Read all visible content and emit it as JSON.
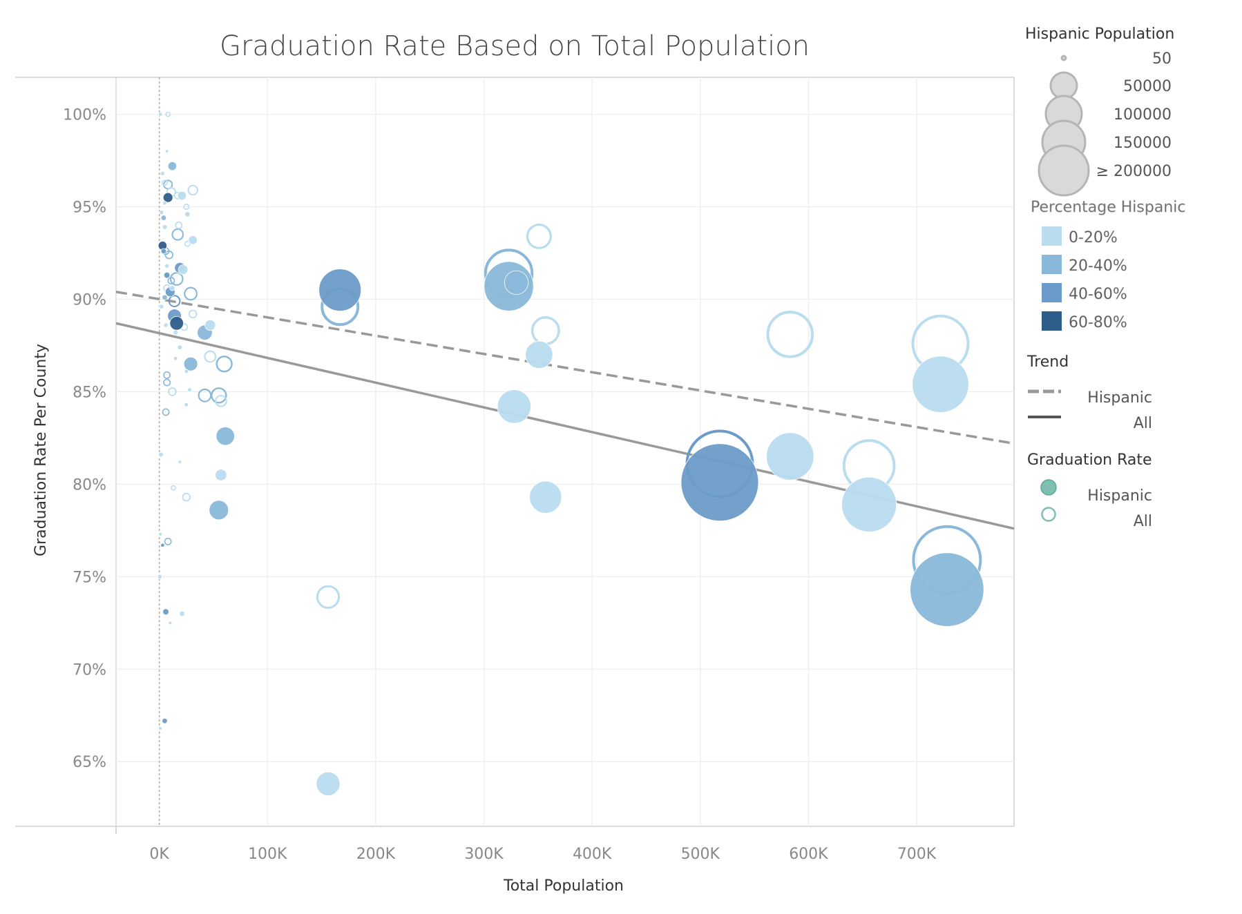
{
  "chart_data": {
    "type": "scatter",
    "title": "Graduation Rate Based on Total Population",
    "xlabel": "Total Population",
    "ylabel": "Graduation Rate Per County",
    "xlim": [
      -40000,
      790000
    ],
    "ylim": [
      61.5,
      102
    ],
    "x_ticks": [
      {
        "value": 0,
        "label": "0K"
      },
      {
        "value": 100000,
        "label": "100K"
      },
      {
        "value": 200000,
        "label": "200K"
      },
      {
        "value": 300000,
        "label": "300K"
      },
      {
        "value": 400000,
        "label": "400K"
      },
      {
        "value": 500000,
        "label": "500K"
      },
      {
        "value": 600000,
        "label": "600K"
      },
      {
        "value": 700000,
        "label": "700K"
      }
    ],
    "y_ticks": [
      {
        "value": 65,
        "label": "65%"
      },
      {
        "value": 70,
        "label": "70%"
      },
      {
        "value": 75,
        "label": "75%"
      },
      {
        "value": 80,
        "label": "80%"
      },
      {
        "value": 85,
        "label": "85%"
      },
      {
        "value": 90,
        "label": "90%"
      },
      {
        "value": 95,
        "label": "95%"
      },
      {
        "value": 100,
        "label": "100%"
      }
    ],
    "grid": true,
    "reference_line_x": 0,
    "legend_position": "right",
    "size_legend": {
      "title": "Hispanic Population",
      "entries": [
        {
          "value": 50,
          "label": "50"
        },
        {
          "value": 50000,
          "label": "50000"
        },
        {
          "value": 100000,
          "label": "100000"
        },
        {
          "value": 150000,
          "label": "150000"
        },
        {
          "value": 200000,
          "label": "≥ 200000"
        }
      ]
    },
    "color_legend": {
      "title": "Percentage Hispanic",
      "entries": [
        {
          "label": "0-20%",
          "color": "#b9dcef"
        },
        {
          "label": "20-40%",
          "color": "#8ab8da"
        },
        {
          "label": "40-60%",
          "color": "#6b9cc9"
        },
        {
          "label": "60-80%",
          "color": "#2f5d8a"
        }
      ]
    },
    "trend_legend": {
      "title": "Trend",
      "entries": [
        {
          "label": "Hispanic",
          "style": "dashed"
        },
        {
          "label": "All",
          "style": "solid"
        }
      ]
    },
    "mark_legend": {
      "title": "Graduation Rate",
      "entries": [
        {
          "label": "Hispanic",
          "style": "filled"
        },
        {
          "label": "All",
          "style": "hollow"
        }
      ]
    },
    "trend_lines": [
      {
        "name": "Hispanic",
        "style": "dashed",
        "color": "#999999",
        "points": [
          [
            -40000,
            90.4
          ],
          [
            790000,
            82.2
          ]
        ]
      },
      {
        "name": "All",
        "style": "solid",
        "color": "#999999",
        "points": [
          [
            -40000,
            88.7
          ],
          [
            790000,
            77.6
          ]
        ]
      }
    ],
    "series": [
      {
        "name": "Hispanic",
        "style": "filled",
        "points": [
          {
            "x": 167000,
            "y": 90.5,
            "hisp": 95000,
            "pct": "40-60%"
          },
          {
            "x": 323000,
            "y": 90.7,
            "hisp": 130000,
            "pct": "20-40%"
          },
          {
            "x": 330000,
            "y": 90.9,
            "hisp": 30000,
            "pct": "20-40%"
          },
          {
            "x": 351000,
            "y": 87.0,
            "hisp": 40000,
            "pct": "0-20%"
          },
          {
            "x": 328000,
            "y": 84.2,
            "hisp": 60000,
            "pct": "0-20%"
          },
          {
            "x": 357000,
            "y": 79.3,
            "hisp": 55000,
            "pct": "0-20%"
          },
          {
            "x": 156000,
            "y": 63.8,
            "hisp": 30000,
            "pct": "0-20%"
          },
          {
            "x": 518000,
            "y": 80.1,
            "hisp": 320000,
            "pct": "40-60%"
          },
          {
            "x": 583000,
            "y": 81.5,
            "hisp": 120000,
            "pct": "0-20%"
          },
          {
            "x": 656000,
            "y": 78.9,
            "hisp": 160000,
            "pct": "0-20%"
          },
          {
            "x": 722000,
            "y": 85.4,
            "hisp": 170000,
            "pct": "0-20%"
          },
          {
            "x": 728000,
            "y": 74.3,
            "hisp": 290000,
            "pct": "20-40%"
          },
          {
            "x": 42000,
            "y": 88.2,
            "hisp": 12000,
            "pct": "20-40%"
          },
          {
            "x": 61000,
            "y": 82.6,
            "hisp": 18000,
            "pct": "20-40%"
          },
          {
            "x": 55000,
            "y": 78.6,
            "hisp": 20000,
            "pct": "20-40%"
          },
          {
            "x": 57000,
            "y": 80.5,
            "hisp": 7000,
            "pct": "0-20%"
          },
          {
            "x": 47000,
            "y": 88.6,
            "hisp": 6000,
            "pct": "0-20%"
          },
          {
            "x": 29000,
            "y": 86.5,
            "hisp": 10000,
            "pct": "20-40%"
          },
          {
            "x": 14000,
            "y": 89.1,
            "hisp": 10000,
            "pct": "40-60%"
          },
          {
            "x": 16000,
            "y": 88.7,
            "hisp": 10000,
            "pct": "60-80%"
          },
          {
            "x": 12000,
            "y": 97.2,
            "hisp": 4000,
            "pct": "20-40%"
          },
          {
            "x": 8000,
            "y": 95.5,
            "hisp": 5000,
            "pct": "60-80%"
          },
          {
            "x": 3000,
            "y": 92.9,
            "hisp": 4000,
            "pct": "60-80%"
          },
          {
            "x": 19000,
            "y": 91.7,
            "hisp": 6000,
            "pct": "40-60%"
          },
          {
            "x": 10000,
            "y": 90.4,
            "hisp": 5000,
            "pct": "40-60%"
          },
          {
            "x": 22000,
            "y": 91.6,
            "hisp": 5000,
            "pct": "0-20%"
          },
          {
            "x": 31000,
            "y": 93.2,
            "hisp": 4000,
            "pct": "0-20%"
          },
          {
            "x": 21000,
            "y": 95.6,
            "hisp": 4000,
            "pct": "0-20%"
          },
          {
            "x": 6000,
            "y": 73.1,
            "hisp": 2000,
            "pct": "40-60%"
          },
          {
            "x": 5000,
            "y": 67.2,
            "hisp": 1500,
            "pct": "40-60%"
          },
          {
            "x": 21000,
            "y": 73.0,
            "hisp": 1500,
            "pct": "0-20%"
          },
          {
            "x": 1500,
            "y": 81.6,
            "hisp": 1200,
            "pct": "0-20%"
          },
          {
            "x": 500,
            "y": 75.0,
            "hisp": 1000,
            "pct": "0-20%"
          },
          {
            "x": 3000,
            "y": 96.8,
            "hisp": 1000,
            "pct": "0-20%"
          },
          {
            "x": 1000,
            "y": 100.0,
            "hisp": 800,
            "pct": "0-20%"
          },
          {
            "x": 7000,
            "y": 98.0,
            "hisp": 600,
            "pct": "0-20%"
          },
          {
            "x": 2000,
            "y": 94.7,
            "hisp": 1000,
            "pct": "0-20%"
          },
          {
            "x": 7000,
            "y": 91.3,
            "hisp": 2000,
            "pct": "40-60%"
          },
          {
            "x": 5000,
            "y": 90.1,
            "hisp": 1500,
            "pct": "20-40%"
          },
          {
            "x": 2000,
            "y": 89.6,
            "hisp": 1000,
            "pct": "0-20%"
          },
          {
            "x": 6000,
            "y": 88.6,
            "hisp": 1000,
            "pct": "0-20%"
          },
          {
            "x": 15000,
            "y": 88.2,
            "hisp": 1200,
            "pct": "0-20%"
          },
          {
            "x": 19000,
            "y": 87.4,
            "hisp": 1200,
            "pct": "0-20%"
          },
          {
            "x": 15000,
            "y": 86.8,
            "hisp": 800,
            "pct": "0-20%"
          },
          {
            "x": 25000,
            "y": 86.1,
            "hisp": 900,
            "pct": "0-20%"
          },
          {
            "x": 28000,
            "y": 85.1,
            "hisp": 900,
            "pct": "0-20%"
          },
          {
            "x": 25000,
            "y": 84.3,
            "hisp": 900,
            "pct": "0-20%"
          },
          {
            "x": 19000,
            "y": 81.2,
            "hisp": 600,
            "pct": "0-20%"
          },
          {
            "x": 1000,
            "y": 77.3,
            "hisp": 600,
            "pct": "0-20%"
          },
          {
            "x": 3000,
            "y": 76.7,
            "hisp": 800,
            "pct": "40-60%"
          },
          {
            "x": 10000,
            "y": 72.5,
            "hisp": 600,
            "pct": "0-20%"
          },
          {
            "x": 1000,
            "y": 66.8,
            "hisp": 500,
            "pct": "0-20%"
          },
          {
            "x": 5000,
            "y": 95.2,
            "hisp": 800,
            "pct": "0-20%"
          },
          {
            "x": 26000,
            "y": 94.6,
            "hisp": 1500,
            "pct": "0-20%"
          },
          {
            "x": 4000,
            "y": 94.4,
            "hisp": 1500,
            "pct": "20-40%"
          },
          {
            "x": 5000,
            "y": 93.9,
            "hisp": 1200,
            "pct": "0-20%"
          },
          {
            "x": 12000,
            "y": 90.6,
            "hisp": 1500,
            "pct": "0-20%"
          },
          {
            "x": 4000,
            "y": 92.6,
            "hisp": 1500,
            "pct": "40-60%"
          },
          {
            "x": 7000,
            "y": 91.8,
            "hisp": 1000,
            "pct": "0-20%"
          }
        ]
      },
      {
        "name": "All",
        "style": "hollow",
        "points": [
          {
            "x": 167000,
            "y": 89.6,
            "hisp": 80000,
            "pct": "20-40%"
          },
          {
            "x": 323000,
            "y": 91.4,
            "hisp": 130000,
            "pct": "20-40%"
          },
          {
            "x": 330000,
            "y": 90.9,
            "hisp": 40000,
            "pct": "0-20%"
          },
          {
            "x": 351000,
            "y": 93.4,
            "hisp": 35000,
            "pct": "0-20%"
          },
          {
            "x": 357000,
            "y": 88.3,
            "hisp": 45000,
            "pct": "0-20%"
          },
          {
            "x": 156000,
            "y": 73.9,
            "hisp": 30000,
            "pct": "0-20%"
          },
          {
            "x": 518000,
            "y": 81.1,
            "hisp": 250000,
            "pct": "40-60%"
          },
          {
            "x": 583000,
            "y": 88.1,
            "hisp": 120000,
            "pct": "0-20%"
          },
          {
            "x": 656000,
            "y": 81.0,
            "hisp": 150000,
            "pct": "0-20%"
          },
          {
            "x": 722000,
            "y": 87.6,
            "hisp": 180000,
            "pct": "0-20%"
          },
          {
            "x": 728000,
            "y": 75.9,
            "hisp": 260000,
            "pct": "20-40%"
          },
          {
            "x": 31000,
            "y": 95.9,
            "hisp": 6000,
            "pct": "0-20%"
          },
          {
            "x": 17000,
            "y": 93.5,
            "hisp": 8000,
            "pct": "20-40%"
          },
          {
            "x": 8000,
            "y": 96.2,
            "hisp": 5000,
            "pct": "20-40%"
          },
          {
            "x": 16000,
            "y": 91.1,
            "hisp": 10000,
            "pct": "20-40%"
          },
          {
            "x": 29000,
            "y": 90.3,
            "hisp": 10000,
            "pct": "20-40%"
          },
          {
            "x": 31000,
            "y": 89.2,
            "hisp": 4000,
            "pct": "0-20%"
          },
          {
            "x": 14000,
            "y": 89.9,
            "hisp": 8000,
            "pct": "40-60%"
          },
          {
            "x": 9000,
            "y": 92.4,
            "hisp": 4000,
            "pct": "20-40%"
          },
          {
            "x": 18000,
            "y": 94.0,
            "hisp": 3000,
            "pct": "0-20%"
          },
          {
            "x": 26000,
            "y": 93.0,
            "hisp": 2000,
            "pct": "0-20%"
          },
          {
            "x": 60000,
            "y": 86.5,
            "hisp": 15000,
            "pct": "20-40%"
          },
          {
            "x": 47000,
            "y": 86.9,
            "hisp": 8000,
            "pct": "0-20%"
          },
          {
            "x": 55000,
            "y": 84.8,
            "hisp": 14000,
            "pct": "20-40%"
          },
          {
            "x": 42000,
            "y": 84.8,
            "hisp": 10000,
            "pct": "20-40%"
          },
          {
            "x": 57000,
            "y": 84.5,
            "hisp": 8000,
            "pct": "0-20%"
          },
          {
            "x": 29000,
            "y": 86.5,
            "hisp": 10000,
            "pct": "20-40%"
          },
          {
            "x": 12000,
            "y": 85.0,
            "hisp": 4000,
            "pct": "0-20%"
          },
          {
            "x": 7000,
            "y": 85.9,
            "hisp": 3000,
            "pct": "20-40%"
          },
          {
            "x": 7000,
            "y": 85.5,
            "hisp": 3000,
            "pct": "20-40%"
          },
          {
            "x": 6000,
            "y": 83.9,
            "hisp": 3000,
            "pct": "20-40%"
          },
          {
            "x": 25000,
            "y": 79.3,
            "hisp": 4000,
            "pct": "0-20%"
          },
          {
            "x": 13000,
            "y": 79.8,
            "hisp": 1500,
            "pct": "0-20%"
          },
          {
            "x": 8000,
            "y": 76.9,
            "hisp": 3000,
            "pct": "20-40%"
          },
          {
            "x": 25000,
            "y": 95.0,
            "hisp": 2000,
            "pct": "0-20%"
          },
          {
            "x": 11000,
            "y": 95.8,
            "hisp": 5000,
            "pct": "0-20%"
          },
          {
            "x": 17000,
            "y": 95.6,
            "hisp": 3000,
            "pct": "0-20%"
          },
          {
            "x": 23000,
            "y": 88.5,
            "hisp": 3000,
            "pct": "0-20%"
          },
          {
            "x": 11000,
            "y": 91.0,
            "hisp": 3000,
            "pct": "20-40%"
          },
          {
            "x": 7000,
            "y": 90.6,
            "hisp": 3000,
            "pct": "0-20%"
          },
          {
            "x": 5000,
            "y": 96.3,
            "hisp": 2000,
            "pct": "0-20%"
          },
          {
            "x": 8000,
            "y": 100.0,
            "hisp": 1500,
            "pct": "0-20%"
          },
          {
            "x": 6000,
            "y": 92.6,
            "hisp": 3000,
            "pct": "20-40%"
          }
        ]
      }
    ]
  }
}
